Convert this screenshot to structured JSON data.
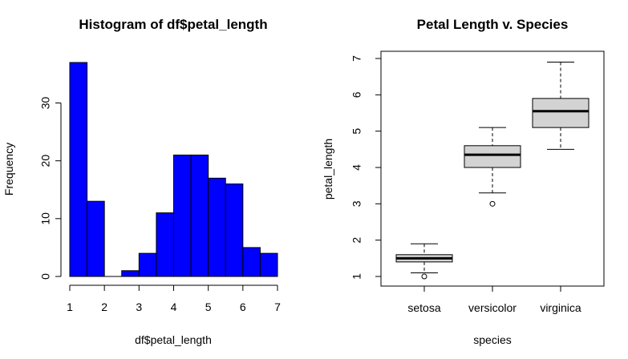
{
  "chart_data": [
    {
      "type": "bar",
      "subtype": "histogram",
      "title": "Histogram of df$petal_length",
      "xlabel": "df$petal_length",
      "ylabel": "Frequency",
      "bins": [
        {
          "x0": 1.0,
          "x1": 1.5,
          "count": 37
        },
        {
          "x0": 1.5,
          "x1": 2.0,
          "count": 13
        },
        {
          "x0": 2.0,
          "x1": 2.5,
          "count": 0
        },
        {
          "x0": 2.5,
          "x1": 3.0,
          "count": 1
        },
        {
          "x0": 3.0,
          "x1": 3.5,
          "count": 4
        },
        {
          "x0": 3.5,
          "x1": 4.0,
          "count": 11
        },
        {
          "x0": 4.0,
          "x1": 4.5,
          "count": 21
        },
        {
          "x0": 4.5,
          "x1": 5.0,
          "count": 21
        },
        {
          "x0": 5.0,
          "x1": 5.5,
          "count": 17
        },
        {
          "x0": 5.5,
          "x1": 6.0,
          "count": 16
        },
        {
          "x0": 6.0,
          "x1": 6.5,
          "count": 5
        },
        {
          "x0": 6.5,
          "x1": 7.0,
          "count": 4
        }
      ],
      "xticks": [
        "1",
        "2",
        "3",
        "4",
        "5",
        "6",
        "7"
      ],
      "yticks": [
        "0",
        "10",
        "20",
        "30"
      ],
      "xlim": [
        1,
        7
      ],
      "ylim": [
        0,
        37
      ],
      "bar_color": "#0000ff",
      "grid": false
    },
    {
      "type": "boxplot",
      "title": "Petal Length v. Species",
      "xlabel": "species",
      "ylabel": "petal_length",
      "categories": [
        "setosa",
        "versicolor",
        "virginica"
      ],
      "boxes": [
        {
          "whisker_low": 1.1,
          "q1": 1.4,
          "median": 1.5,
          "q3": 1.6,
          "whisker_high": 1.9,
          "outliers": [
            1.0
          ]
        },
        {
          "whisker_low": 3.3,
          "q1": 4.0,
          "median": 4.35,
          "q3": 4.6,
          "whisker_high": 5.1,
          "outliers": [
            3.0
          ]
        },
        {
          "whisker_low": 4.5,
          "q1": 5.1,
          "median": 5.55,
          "q3": 5.9,
          "whisker_high": 6.9,
          "outliers": []
        }
      ],
      "yticks": [
        "1",
        "2",
        "3",
        "4",
        "5",
        "6",
        "7"
      ],
      "ylim": [
        1,
        7
      ],
      "box_color": "#d3d3d3",
      "grid": false
    }
  ]
}
